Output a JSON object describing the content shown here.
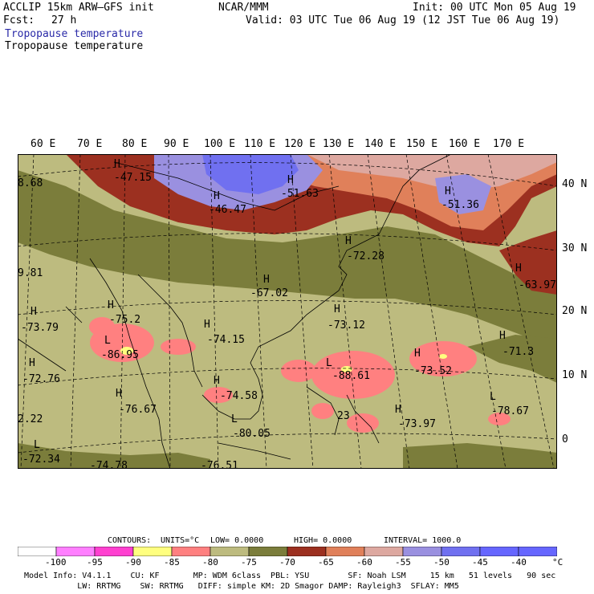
{
  "header": {
    "model": "ACCLIP 15km ARW–GFS init",
    "org": "NCAR/MMM",
    "init": "Init: 00 UTC Mon 05 Aug 19",
    "fcst_label": "Fcst:",
    "fcst_value": "27 h",
    "valid": "Valid: 03 UTC Tue 06 Aug 19 (12 JST Tue 06 Aug 19)",
    "title_blue": "Tropopause temperature",
    "title_black": "Tropopause temperature"
  },
  "axes": {
    "lon_labels": [
      "60 E",
      "70 E",
      "80 E",
      "90 E",
      "100 E",
      "110 E",
      "120 E",
      "130 E",
      "140 E",
      "150 E",
      "160 E",
      "170 E"
    ],
    "lat_labels": [
      "40 N",
      "30 N",
      "20 N",
      "10 N",
      "0"
    ]
  },
  "map_labels": [
    {
      "letter": "H",
      "value": "-47.15"
    },
    {
      "letter": "H",
      "value": "-51.63"
    },
    {
      "letter": "H",
      "value": "-46.47"
    },
    {
      "letter": "H",
      "value": "-51.36"
    },
    {
      "letter": "",
      "value": "8.68"
    },
    {
      "letter": "H",
      "value": "-72.28"
    },
    {
      "letter": "",
      "value": "9.81"
    },
    {
      "letter": "H",
      "value": "-67.02"
    },
    {
      "letter": "H",
      "value": "-63.97"
    },
    {
      "letter": "H",
      "value": "-73.79"
    },
    {
      "letter": "H",
      "value": "-75.2"
    },
    {
      "letter": "H",
      "value": "-73.12"
    },
    {
      "letter": "L",
      "value": "-86.95"
    },
    {
      "letter": "H",
      "value": "-74.15"
    },
    {
      "letter": "H",
      "value": "-71.3"
    },
    {
      "letter": "H",
      "value": "-72.76"
    },
    {
      "letter": "L",
      "value": "-88.61"
    },
    {
      "letter": "H",
      "value": "-73.52"
    },
    {
      "letter": "H",
      "value": "-76.67"
    },
    {
      "letter": "H",
      "value": "-74.58"
    },
    {
      "letter": "L",
      "value": "-78.67"
    },
    {
      "letter": "",
      "value": "2.22"
    },
    {
      "letter": "H",
      "value": "-73.97"
    },
    {
      "letter": "L",
      "value": "-80.05"
    },
    {
      "letter": "L",
      "value": "-72.34"
    },
    {
      "letter": "",
      "value": "-74.78"
    },
    {
      "letter": "",
      "value": "-76.51"
    },
    {
      "letter": "",
      "value": "23"
    }
  ],
  "contours_line": {
    "contours_label": "CONTOURS:",
    "units": "UNITS=°C",
    "low": "LOW= 0.0000",
    "high": "HIGH= 0.0000",
    "interval": "INTERVAL= 1000.0"
  },
  "colorbar": {
    "colors": [
      "#ffffff",
      "#ff7fff",
      "#ff40d0",
      "#ffff7f",
      "#ff8080",
      "#bdbb7f",
      "#7b7d3b",
      "#9c3020",
      "#e0805a",
      "#dda8a0",
      "#9a90e0",
      "#7070f0",
      "#6666ff"
    ],
    "labels": [
      "-100",
      "-95",
      "-90",
      "-85",
      "-80",
      "-75",
      "-70",
      "-65",
      "-60",
      "-55",
      "-50",
      "-45",
      "-40",
      "°C"
    ]
  },
  "footer": {
    "line1": "Model Info: V4.1.1    CU: KF       MP: WDM 6class  PBL: YSU        SF: Noah LSM     15 km   51 levels   90 sec",
    "line2": "           LW: RRTMG    SW: RRTMG   DIFF: simple KM: 2D Smagor DAMP: Rayleigh3  SFLAY: MM5"
  }
}
